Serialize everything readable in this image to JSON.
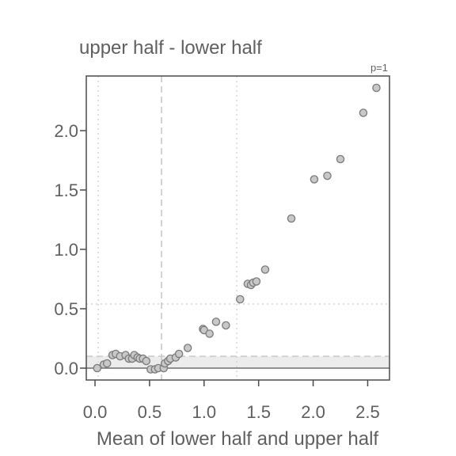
{
  "chart_data": {
    "type": "scatter",
    "title": "upper half - lower half",
    "xlabel": "Mean of lower half and upper half",
    "ylabel": "",
    "annotation": "p=1",
    "xlim": [
      -0.08,
      2.7
    ],
    "ylim": [
      -0.1,
      2.46
    ],
    "x_ticks": [
      {
        "value": 0.0,
        "label": "0.0"
      },
      {
        "value": 0.5,
        "label": "0.5"
      },
      {
        "value": 1.0,
        "label": "1.0"
      },
      {
        "value": 1.5,
        "label": "1.5"
      },
      {
        "value": 2.0,
        "label": "2.0"
      },
      {
        "value": 2.5,
        "label": "2.5"
      }
    ],
    "y_ticks": [
      {
        "value": 0.0,
        "label": "0.0"
      },
      {
        "value": 0.5,
        "label": "0.5"
      },
      {
        "value": 1.0,
        "label": "1.0"
      },
      {
        "value": 1.5,
        "label": "1.5"
      },
      {
        "value": 2.0,
        "label": "2.0"
      }
    ],
    "grid": false,
    "reference_lines": {
      "vertical_dotted": [
        0.03,
        1.3
      ],
      "vertical_dashed": [
        0.61
      ],
      "horizontal_solid": [
        0.0
      ],
      "horizontal_dashed": [
        0.1
      ],
      "horizontal_dotted": [
        0.54
      ]
    },
    "shaded_band": [
      0.0,
      0.1
    ],
    "points": [
      {
        "x": 0.02,
        "y": 0.0
      },
      {
        "x": 0.08,
        "y": 0.03
      },
      {
        "x": 0.11,
        "y": 0.04
      },
      {
        "x": 0.16,
        "y": 0.11
      },
      {
        "x": 0.19,
        "y": 0.12
      },
      {
        "x": 0.23,
        "y": 0.1
      },
      {
        "x": 0.28,
        "y": 0.11
      },
      {
        "x": 0.31,
        "y": 0.08
      },
      {
        "x": 0.34,
        "y": 0.08
      },
      {
        "x": 0.36,
        "y": 0.11
      },
      {
        "x": 0.39,
        "y": 0.09
      },
      {
        "x": 0.41,
        "y": 0.08
      },
      {
        "x": 0.44,
        "y": 0.08
      },
      {
        "x": 0.47,
        "y": 0.06
      },
      {
        "x": 0.51,
        "y": -0.01
      },
      {
        "x": 0.55,
        "y": -0.01
      },
      {
        "x": 0.58,
        "y": 0.0
      },
      {
        "x": 0.63,
        "y": 0.0
      },
      {
        "x": 0.64,
        "y": 0.04
      },
      {
        "x": 0.67,
        "y": 0.06
      },
      {
        "x": 0.69,
        "y": 0.08
      },
      {
        "x": 0.74,
        "y": 0.09
      },
      {
        "x": 0.77,
        "y": 0.12
      },
      {
        "x": 0.85,
        "y": 0.17
      },
      {
        "x": 0.99,
        "y": 0.33
      },
      {
        "x": 1.0,
        "y": 0.32
      },
      {
        "x": 1.05,
        "y": 0.29
      },
      {
        "x": 1.11,
        "y": 0.39
      },
      {
        "x": 1.2,
        "y": 0.36
      },
      {
        "x": 1.33,
        "y": 0.58
      },
      {
        "x": 1.4,
        "y": 0.71
      },
      {
        "x": 1.43,
        "y": 0.7
      },
      {
        "x": 1.45,
        "y": 0.72
      },
      {
        "x": 1.48,
        "y": 0.73
      },
      {
        "x": 1.56,
        "y": 0.83
      },
      {
        "x": 1.8,
        "y": 1.26
      },
      {
        "x": 2.01,
        "y": 1.59
      },
      {
        "x": 2.13,
        "y": 1.62
      },
      {
        "x": 2.25,
        "y": 1.76
      },
      {
        "x": 2.46,
        "y": 2.15
      },
      {
        "x": 2.58,
        "y": 2.36
      }
    ]
  }
}
